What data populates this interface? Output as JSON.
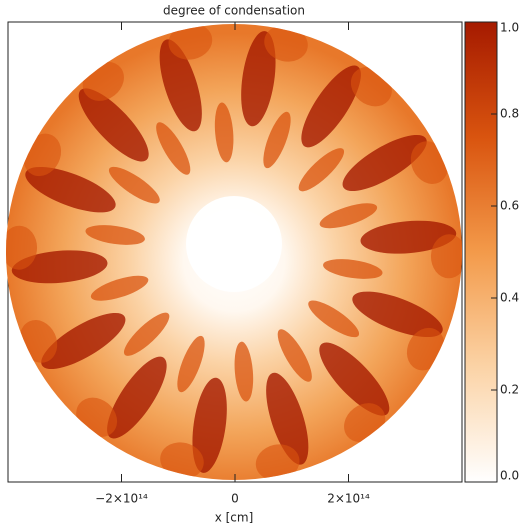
{
  "chart_data": {
    "type": "image",
    "title": "degree of condensation",
    "x_label": "x [cm]",
    "xlim": [
      -400000000000000,
      400000000000000
    ],
    "xticks": [
      {
        "value": -200000000000000,
        "label": "−2×10¹⁴"
      },
      0,
      {
        "value": 200000000000000,
        "label": "2×10¹⁴"
      }
    ],
    "colorbar_lim": [
      0,
      1
    ],
    "colorbar_ticks": [
      {
        "value": 0,
        "label": "0.0"
      },
      0.2,
      0.4,
      0.6,
      0.8,
      {
        "value": 1,
        "label": "1.0"
      }
    ],
    "colormap": [
      "#ffffff",
      "#fbd3a6",
      "#f39a4a",
      "#d9540f",
      "#a51a00"
    ]
  }
}
